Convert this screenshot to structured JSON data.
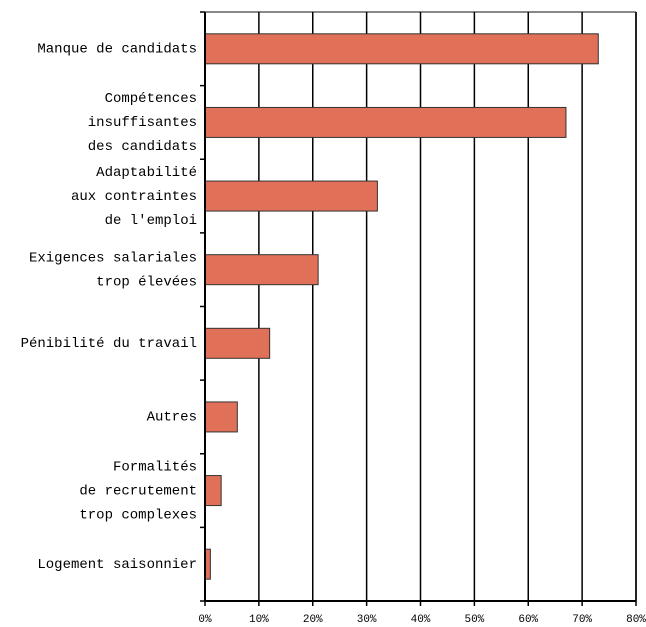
{
  "chart_data": {
    "type": "hbar",
    "categories": [
      [
        "Manque de candidats"
      ],
      [
        "Compétences",
        "insuffisantes",
        "des candidats"
      ],
      [
        "Adaptabilité",
        "aux contraintes",
        "de l'emploi"
      ],
      [
        "Exigences salariales",
        "trop élevées"
      ],
      [
        "Pénibilité du travail"
      ],
      [
        "Autres"
      ],
      [
        "Formalités",
        "de recrutement",
        "trop complexes"
      ],
      [
        "Logement saisonnier"
      ]
    ],
    "values": [
      73,
      67,
      32,
      21,
      12,
      6,
      3,
      1
    ],
    "color": "#e07058",
    "xlim": [
      0,
      80
    ],
    "xticks": [
      {
        "value": 0,
        "label": "0%"
      },
      {
        "value": 10,
        "label": "10%"
      },
      {
        "value": 20,
        "label": "20%"
      },
      {
        "value": 30,
        "label": "30%"
      },
      {
        "value": 40,
        "label": "40%"
      },
      {
        "value": 50,
        "label": "50%"
      },
      {
        "value": 60,
        "label": "60%"
      },
      {
        "value": 70,
        "label": "70%"
      },
      {
        "value": 80,
        "label": "80%"
      }
    ],
    "grid": true
  }
}
